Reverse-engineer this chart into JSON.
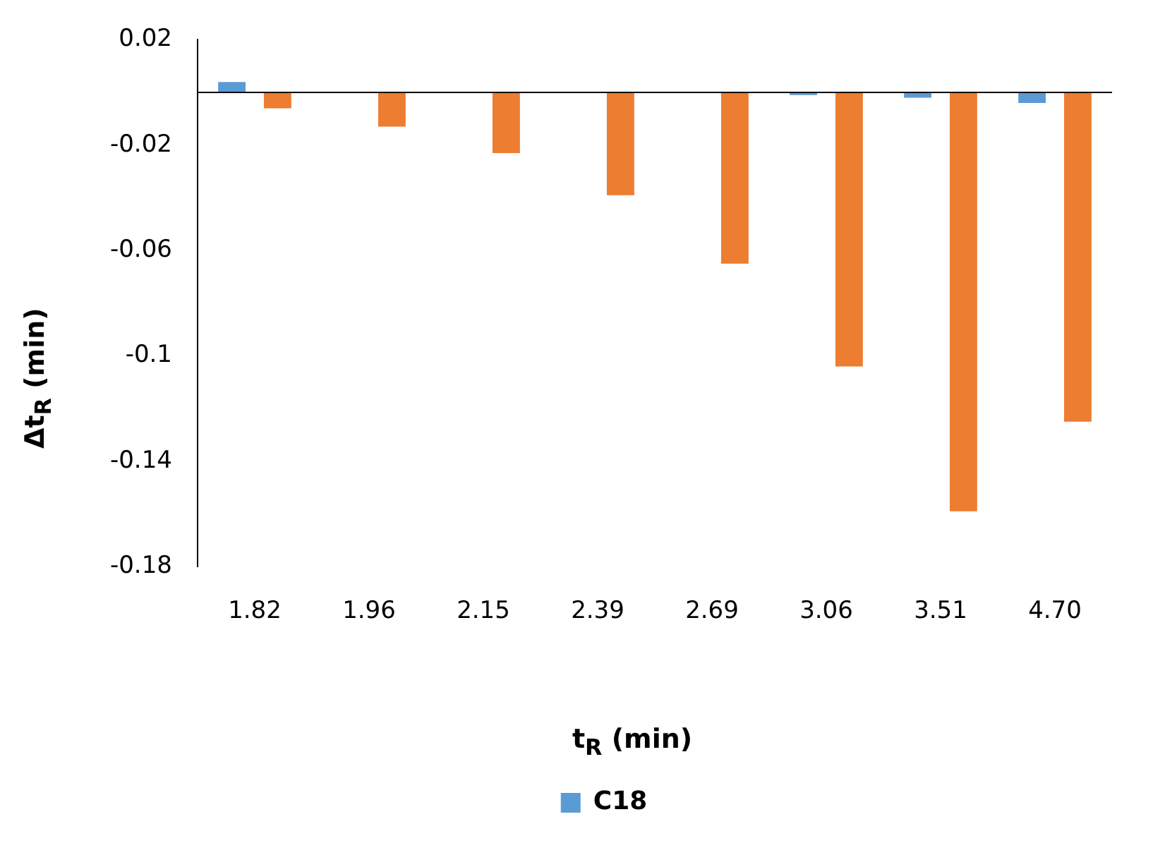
{
  "chart_data": {
    "type": "bar",
    "xlabel": "t$_{R}$ (min)",
    "ylabel": "Δt$_{R}$ (min)",
    "categories": [
      "1.82",
      "1.96",
      "2.15",
      "2.39",
      "2.69",
      "3.06",
      "3.51",
      "4.70"
    ],
    "series": [
      {
        "name": "C18",
        "color": "#5b9bd5",
        "values": [
          0.004,
          0,
          0,
          0,
          0,
          -0.001,
          -0.002,
          -0.004
        ]
      },
      {
        "color": "#ed7d31",
        "values": [
          -0.006,
          -0.013,
          -0.023,
          -0.039,
          -0.065,
          -0.104,
          -0.159,
          -0.125
        ]
      }
    ],
    "ylim": [
      -0.18,
      0.02
    ],
    "yticks": [
      0.02,
      -0.02,
      -0.06,
      -0.1,
      -0.14,
      -0.18
    ],
    "grid": false,
    "legend": "bottom",
    "ref_lines": [
      {
        "axis": "y",
        "value": 0,
        "color": "#000000"
      }
    ]
  }
}
